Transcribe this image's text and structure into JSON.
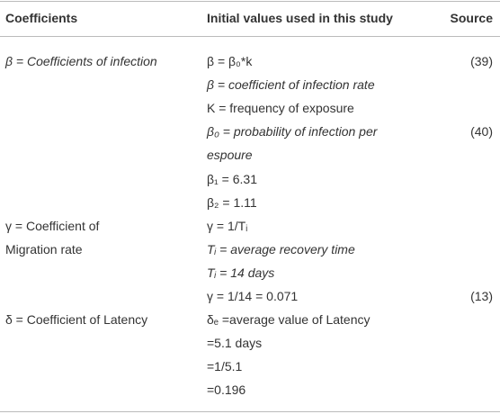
{
  "table": {
    "header": [
      "Coefficients",
      "Initial values used in this study",
      "Source"
    ],
    "lines": [
      {
        "coefficient": "β = Coefficients of infection",
        "value": "β = β₀*k",
        "source": "(39)"
      },
      {
        "value": "β = coefficient of infection rate"
      },
      {
        "value": "K = frequency of exposure"
      },
      {
        "value": "β₀ = probability  of infection per",
        "source": "(40)"
      },
      {
        "value": "espoure"
      },
      {
        "value": "β₁ = 6.31"
      },
      {
        "value": "β₂ = 1.11"
      },
      {
        "coefficient": "γ = Coefficient of",
        "value": "γ = 1/Tᵢ"
      },
      {
        "coefficient": "Migration rate",
        "value": "Tᵢ = average recovery time"
      },
      {
        "value": "Tᵢ = 14 days"
      },
      {
        "value": "γ = 1/14 = 0.071",
        "source": "(13)"
      },
      {
        "coefficient": "δ = Coefficient of Latency",
        "value": "δₑ =average value of Latency"
      },
      {
        "value": "=5.1 days"
      },
      {
        "value": "=1/5.1"
      },
      {
        "value": "=0.196"
      }
    ]
  }
}
